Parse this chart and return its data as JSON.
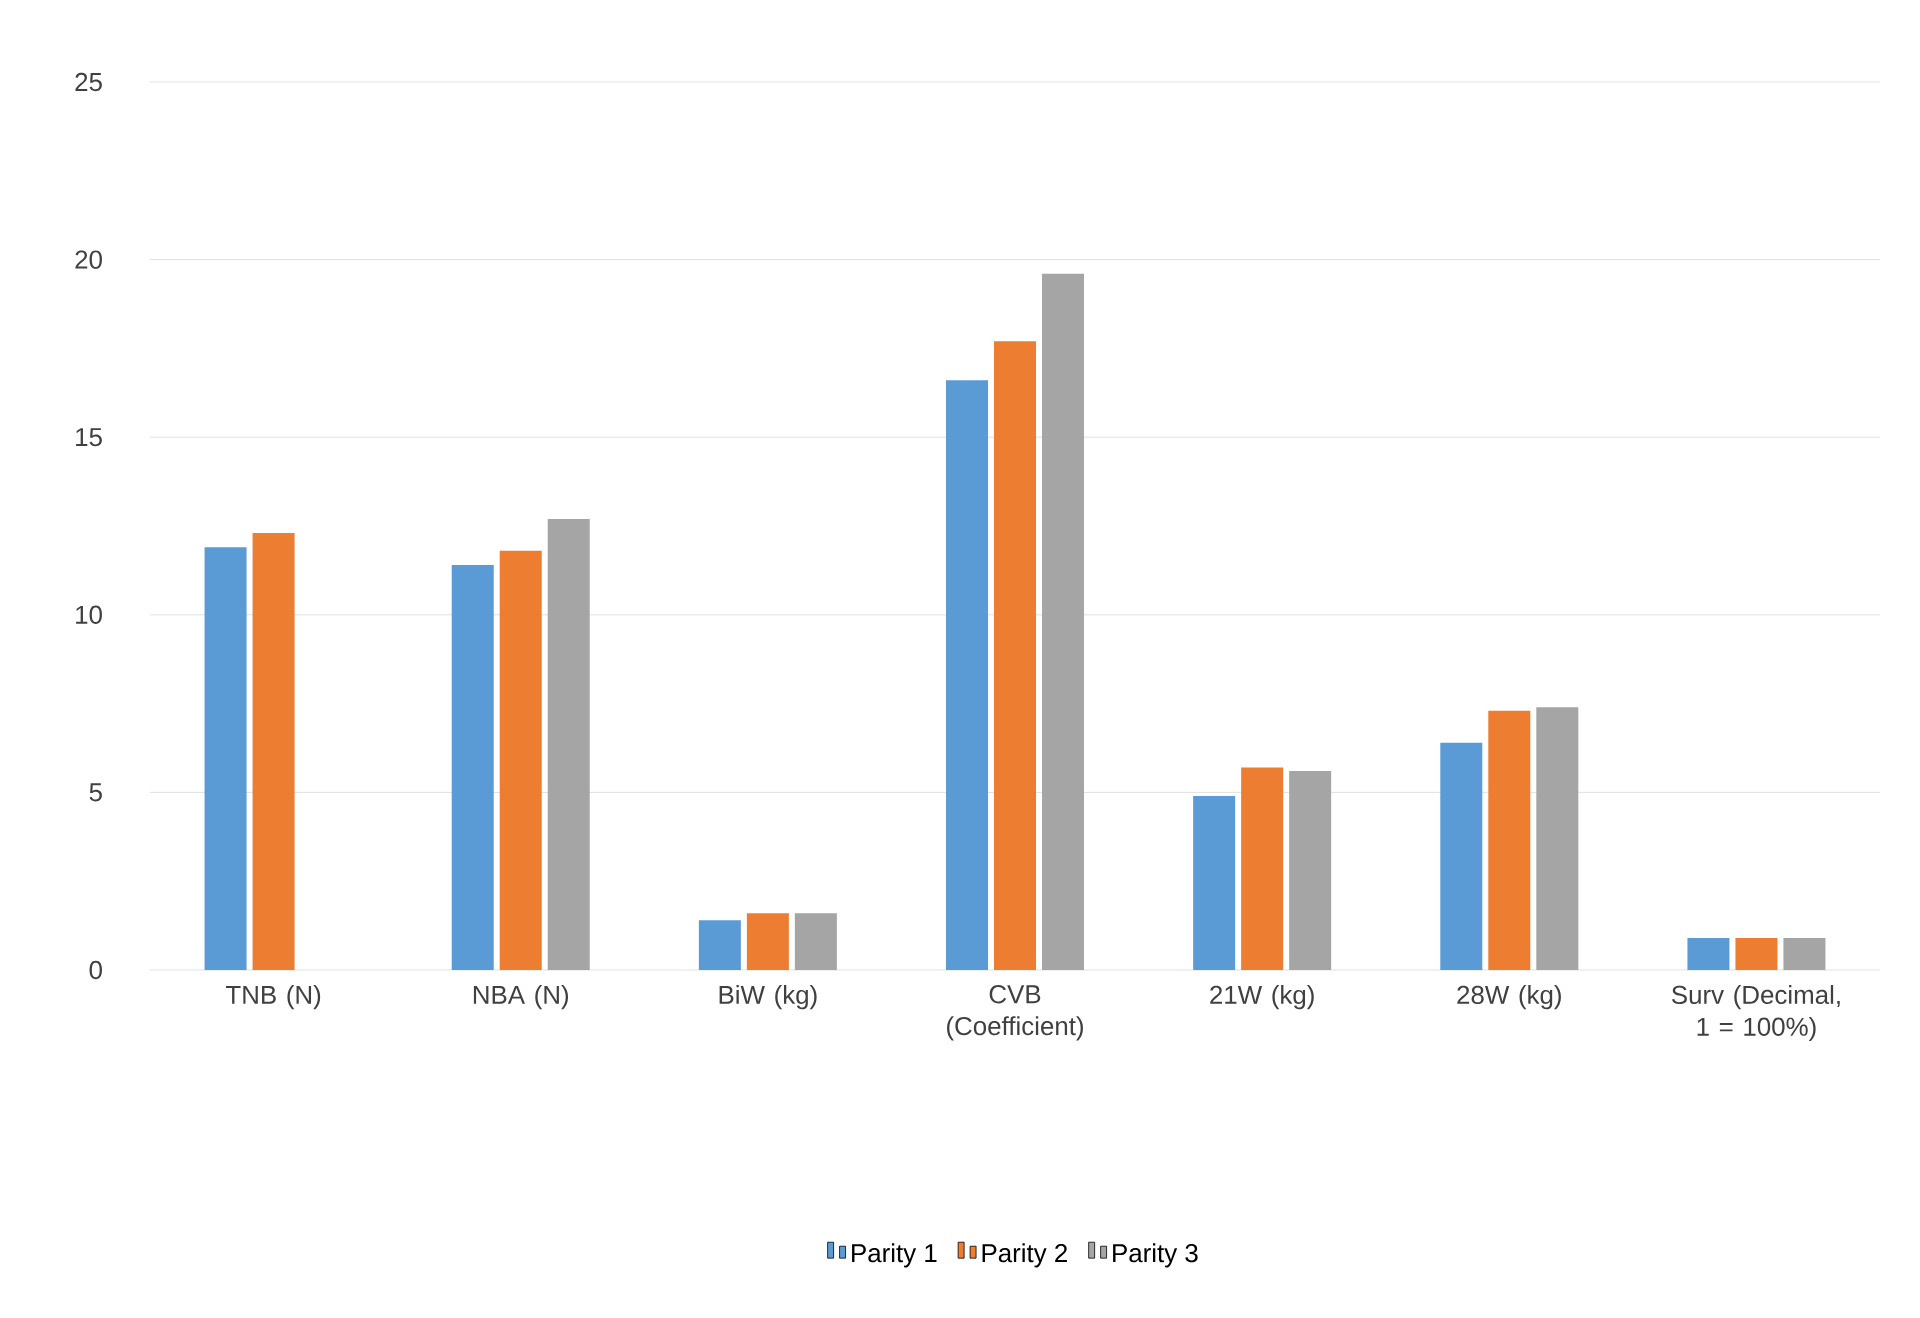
{
  "chart_data": {
    "type": "bar",
    "categories": [
      "TNB (N)",
      "NBA (N)",
      "BiW (kg)",
      "CVB (Coefficient)",
      "21W (kg)",
      "28W (kg)",
      "Surv (Decimal, 1 = 100%)"
    ],
    "series": [
      {
        "name": "Parity 1",
        "color": "#5b9bd5",
        "values": [
          11.9,
          11.4,
          1.4,
          16.6,
          4.9,
          6.4,
          0.9
        ]
      },
      {
        "name": "Parity 2",
        "color": "#ed7d31",
        "values": [
          12.3,
          11.8,
          1.6,
          17.7,
          5.7,
          7.3,
          0.9
        ]
      },
      {
        "name": "Parity 3",
        "color": "#a5a5a5",
        "values": [
          null,
          12.7,
          1.6,
          19.6,
          5.6,
          7.4,
          0.9
        ]
      }
    ],
    "ylim": [
      0,
      25
    ],
    "yticks": [
      0,
      5,
      10,
      15,
      20,
      25
    ],
    "grid": "y",
    "legend": "bottom"
  }
}
